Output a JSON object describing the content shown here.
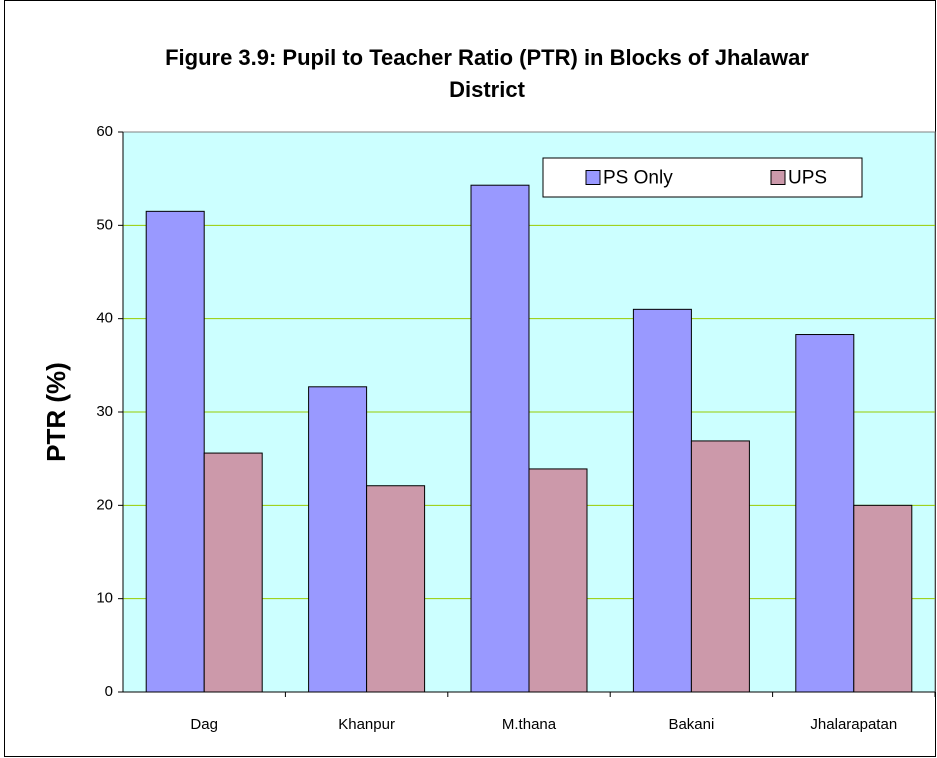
{
  "chart_data": {
    "type": "bar",
    "title": "Figure 3.9: Pupil to Teacher Ratio (PTR) in Blocks of Jhalawar District",
    "y_label": "PTR (%)",
    "categories": [
      "Dag",
      "Khanpur",
      "M.thana",
      "Bakani",
      "Jhalarapatan"
    ],
    "series": [
      {
        "name": "PS Only",
        "color": "#9999ff",
        "values": [
          51.5,
          32.7,
          54.3,
          41.0,
          38.3
        ]
      },
      {
        "name": "UPS",
        "color": "#cc99aa",
        "values": [
          25.6,
          22.1,
          23.9,
          26.9,
          20.0
        ]
      }
    ],
    "ylim": [
      0,
      60
    ],
    "yticks": [
      0,
      10,
      20,
      30,
      40,
      50,
      60
    ],
    "grid": true,
    "legend": "top-right"
  }
}
